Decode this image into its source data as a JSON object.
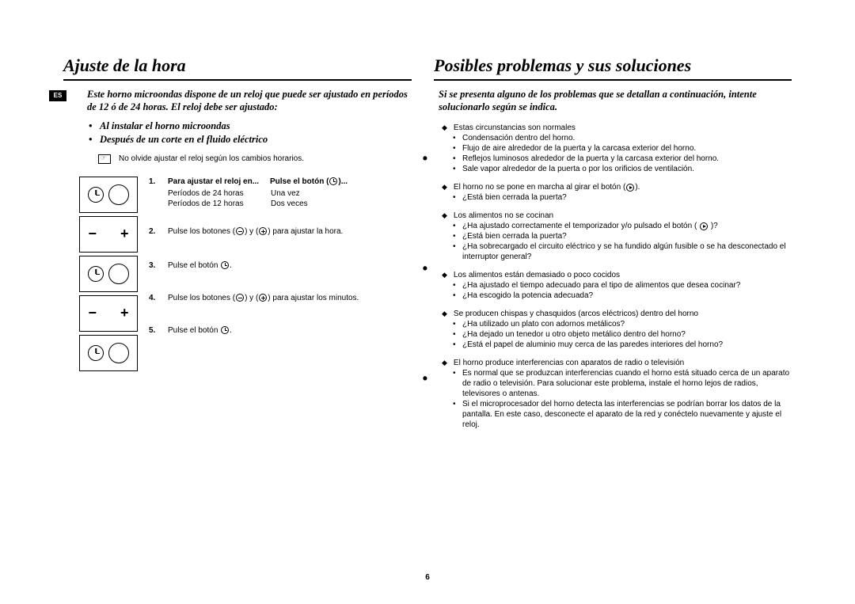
{
  "lang_badge": "ES",
  "page_number": "6",
  "left": {
    "title": "Ajuste de la hora",
    "intro": "Este horno microondas dispone de un reloj que puede ser ajustado en períodos de 12  ó de 24 horas. El reloj debe ser ajustado:",
    "bullets": [
      "Al instalar el horno microondas",
      "Después de un corte en el fluido eléctrico"
    ],
    "note": "No olvide ajustar el reloj según los cambios horarios.",
    "steps": [
      {
        "num": "1.",
        "head_a": "Para ajustar el reloj en...",
        "head_b": "Pulse el botón (",
        "head_c": ")...",
        "rows": [
          {
            "c1": "Períodos de 24 horas",
            "c2": "Una vez"
          },
          {
            "c1": "Períodos de 12 horas",
            "c2": "Dos veces"
          }
        ]
      },
      {
        "num": "2.",
        "text_a": "Pulse los botones (",
        "text_b": ") y (",
        "text_c": ") para ajustar la hora."
      },
      {
        "num": "3.",
        "text_a": "Pulse el botón ",
        "text_c": "."
      },
      {
        "num": "4.",
        "text_a": "Pulse los botones (",
        "text_b": ") y (",
        "text_c": ") para ajustar los minutos."
      },
      {
        "num": "5.",
        "text_a": "Pulse el botón ",
        "text_c": "."
      }
    ]
  },
  "right": {
    "title": "Posibles problemas y sus soluciones",
    "intro": "Si se presenta alguno de los problemas que se detallan a continuación, intente solucionarlo según se indica.",
    "groups": [
      {
        "head": "Estas circunstancias son normales",
        "items": [
          "Condensación dentro del horno.",
          "Flujo de aire alrededor de la puerta y la carcasa exterior del horno.",
          "Reflejos luminosos alrededor de la puerta y la carcasa exterior del horno.",
          "Sale vapor alrededor de la puerta o por los orificios de ventilación."
        ]
      },
      {
        "head_a": "El horno no se pone en marcha al girar el botón (",
        "head_b": ").",
        "items": [
          "¿Está bien cerrada la puerta?"
        ]
      },
      {
        "head": "Los alimentos no se cocinan",
        "items": [
          "¿Ha ajustado correctamente el temporizador y/o pulsado el botón ( _ICON_ )?",
          "¿Está bien cerrada la puerta?",
          "¿Ha sobrecargado el circuito eléctrico y se ha fundido algún fusible o se ha desconectado el interruptor general?"
        ]
      },
      {
        "head": "Los alimentos están demasiado o poco cocidos",
        "items": [
          "¿Ha ajustado el tiempo adecuado para el tipo de alimentos que desea cocinar?",
          "¿Ha escogido la potencia adecuada?"
        ]
      },
      {
        "head": "Se producen chispas y chasquidos (arcos eléctricos) dentro del horno",
        "items": [
          "¿Ha utilizado un plato con adornos metálicos?",
          "¿Ha dejado un tenedor u otro objeto metálico dentro del horno?",
          "¿Está el papel de aluminio muy cerca de las paredes interiores del horno?"
        ]
      },
      {
        "head": "El horno produce interferencias con aparatos de radio o televisión",
        "items": [
          "Es normal que se produzcan interferencias cuando el horno está situado cerca de un aparato de radio o televisión. Para solucionar este problema, instale el horno lejos de radios, televisores o antenas.",
          "Si el microprocesador del horno detecta las interferencias se podrían borrar los datos de la pantalla. En este caso, desconecte el aparato de la red y conéctelo nuevamente y ajuste el reloj."
        ]
      }
    ]
  }
}
